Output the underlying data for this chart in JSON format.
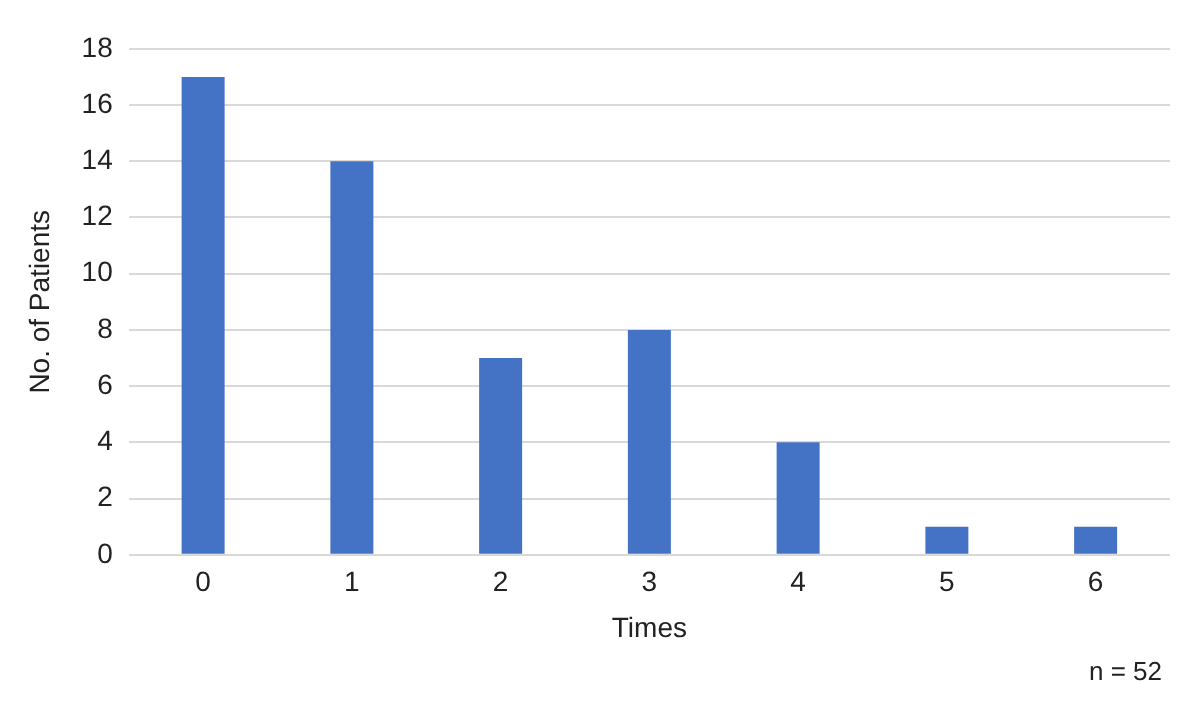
{
  "chart_data": {
    "type": "bar",
    "xlabel": "Times",
    "ylabel": "No. of Patients",
    "categories": [
      "0",
      "1",
      "2",
      "3",
      "4",
      "5",
      "6"
    ],
    "values": [
      17,
      14,
      7,
      8,
      4,
      1,
      1
    ],
    "color": "#4472c4",
    "ylim": [
      0,
      18
    ],
    "yticks": [
      0,
      2,
      4,
      6,
      8,
      10,
      12,
      14,
      16,
      18
    ],
    "grid": "y",
    "annotations": [
      "n = 52"
    ]
  }
}
